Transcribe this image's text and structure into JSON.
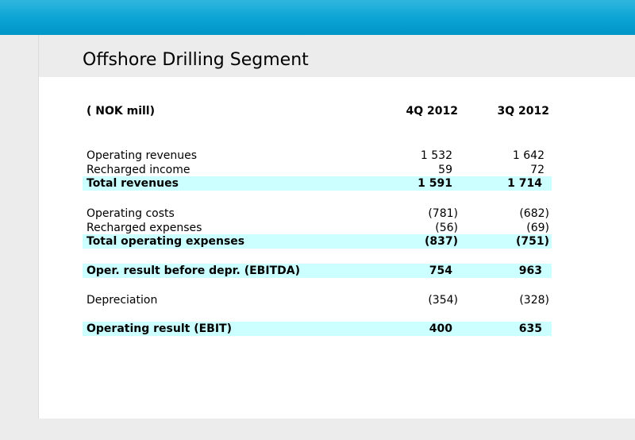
{
  "title": "Offshore Drilling Segment",
  "header": {
    "label": "( NOK mill)",
    "col1": "4Q 2012",
    "col2": "3Q 2012"
  },
  "rows": [
    {
      "label": "Operating revenues",
      "col1": "1 532",
      "col2": "1 642"
    },
    {
      "label": "Recharged income",
      "col1": "59",
      "col2": "72"
    },
    {
      "label": "Total revenues",
      "col1": "1 591",
      "col2": "1 714"
    },
    {
      "label": "Operating costs",
      "col1": "(781)",
      "col2": "(682)"
    },
    {
      "label": "Recharged expenses",
      "col1": "(56)",
      "col2": "(69)"
    },
    {
      "label": "Total operating expenses",
      "col1": "(837)",
      "col2": "(751)"
    },
    {
      "label": "Oper. result before depr. (EBITDA)",
      "col1": "754",
      "col2": "963"
    },
    {
      "label": "Depreciation",
      "col1": "(354)",
      "col2": "(328)"
    },
    {
      "label": "Operating result (EBIT)",
      "col1": "400",
      "col2": "635"
    }
  ],
  "colors": {
    "accent": "#0aa3d3",
    "highlight": "#ccffff",
    "panel": "#ececec"
  }
}
